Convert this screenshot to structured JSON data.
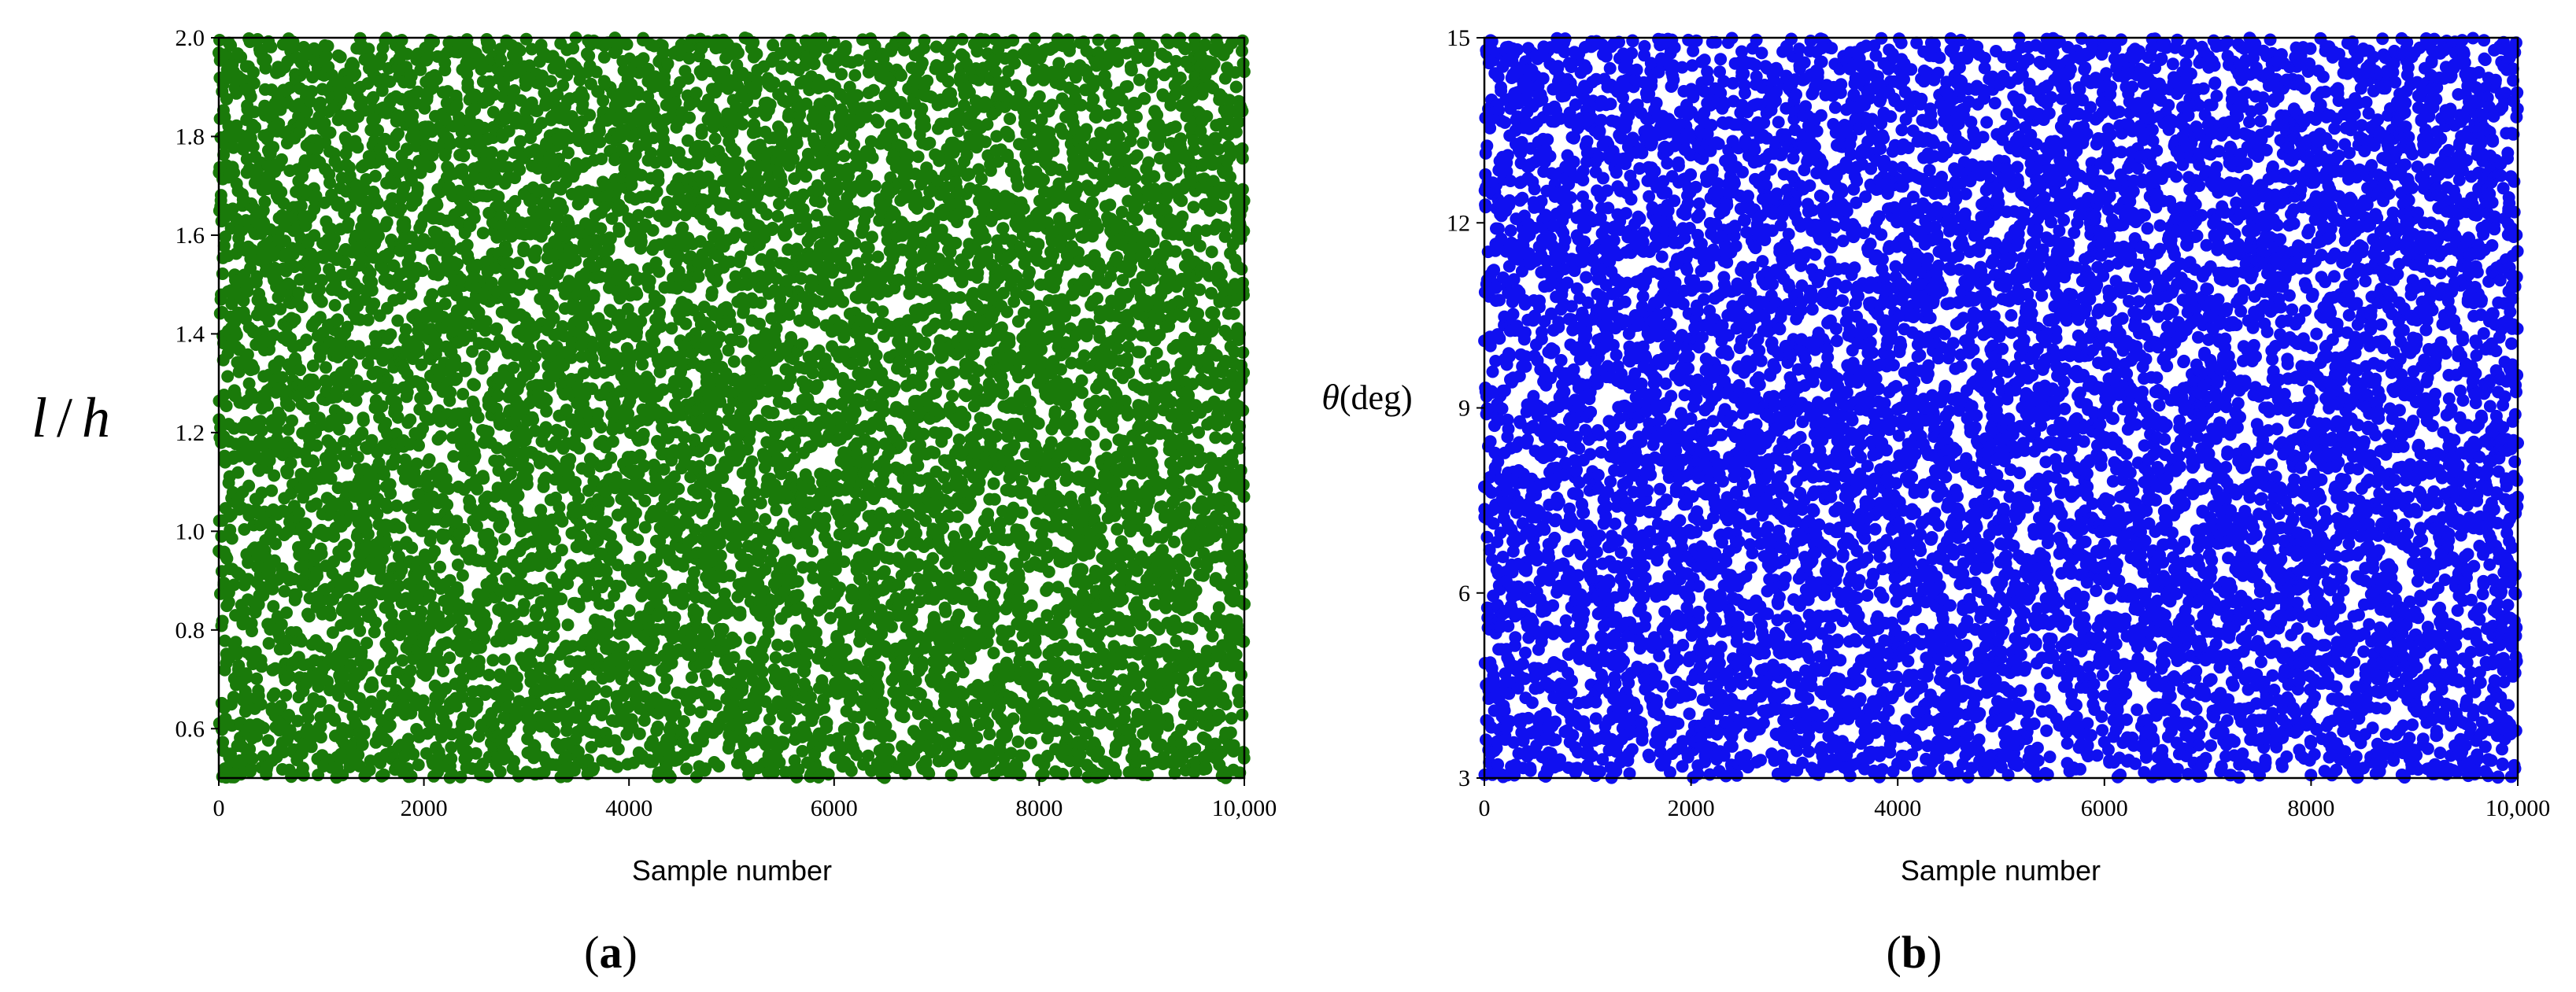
{
  "chart_data": [
    {
      "type": "scatter",
      "panel_label": "(a)",
      "xlabel": "Sample number",
      "ylabel": "l / h",
      "xlim": [
        0,
        10000
      ],
      "ylim": [
        0.5,
        2.0
      ],
      "xticks": [
        "0",
        "2000",
        "4000",
        "6000",
        "8000",
        "10,000"
      ],
      "yticks": [
        "0.6",
        "0.8",
        "1.0",
        "1.2",
        "1.4",
        "1.6",
        "1.8",
        "2.0"
      ],
      "color": "#1a7a0a",
      "n_samples": 10000,
      "distribution": "uniform",
      "grid": false
    },
    {
      "type": "scatter",
      "panel_label": "(b)",
      "xlabel": "Sample number",
      "ylabel": "θ(deg)",
      "xlim": [
        0,
        10000
      ],
      "ylim": [
        3,
        15
      ],
      "xticks": [
        "0",
        "2000",
        "4000",
        "6000",
        "8000",
        "10,000"
      ],
      "yticks": [
        "3",
        "6",
        "9",
        "12",
        "15"
      ],
      "color": "#1010f0",
      "n_samples": 10000,
      "distribution": "uniform",
      "grid": false
    }
  ]
}
